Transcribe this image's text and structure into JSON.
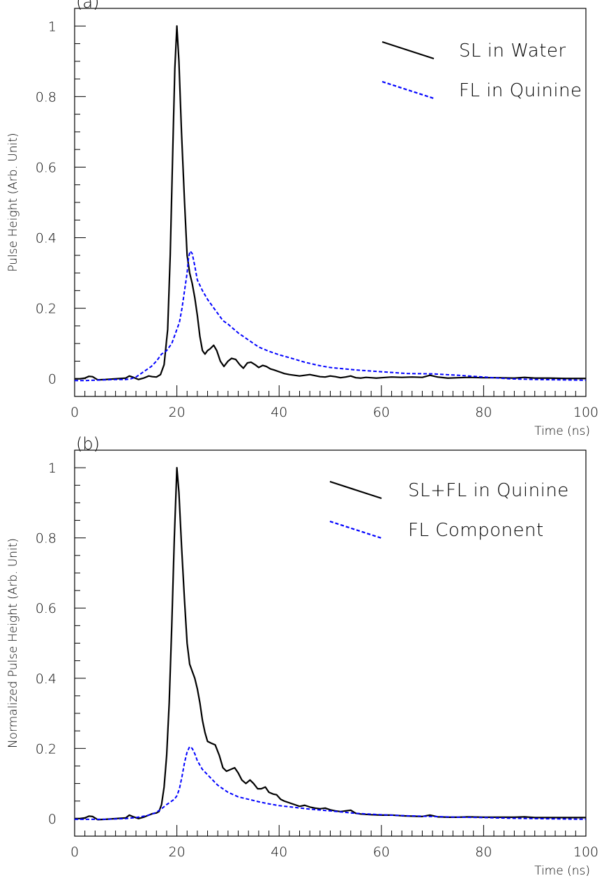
{
  "chart_data": [
    {
      "type": "line",
      "panel_label": "(a)",
      "xlabel": "Time (ns)",
      "ylabel": "Pulse Height (Arb. Unit)",
      "xlim": [
        0,
        100
      ],
      "ylim": [
        -0.05,
        1.05
      ],
      "x_ticks": [
        0,
        20,
        40,
        60,
        80,
        100
      ],
      "y_ticks": [
        0,
        0.2,
        0.4,
        0.6,
        0.8,
        1
      ],
      "x_tick_labels": [
        "0",
        "20",
        "40",
        "60",
        "80",
        "100"
      ],
      "y_tick_labels": [
        "0",
        "0.2",
        "0.4",
        "0.6",
        "0.8",
        "1"
      ],
      "grid": false,
      "legend_position": "top-right",
      "series": [
        {
          "name": "SL in Water",
          "color": "#000000",
          "style": "solid",
          "x": [
            0,
            1,
            2,
            2.8,
            3.5,
            4.5,
            6,
            8,
            10,
            10.7,
            11.5,
            12.5,
            13.5,
            14.5,
            15.2,
            16,
            16.8,
            17.5,
            18.2,
            18.7,
            19.2,
            19.6,
            20,
            20.4,
            20.9,
            21.5,
            22,
            22.5,
            23,
            23.5,
            24,
            24.5,
            25,
            25.5,
            26,
            26.5,
            27.2,
            27.8,
            28.5,
            29.2,
            30,
            30.7,
            31.5,
            32.3,
            33,
            33.8,
            34.5,
            35.3,
            36,
            36.8,
            37.5,
            38.3,
            39,
            40,
            41,
            42,
            43,
            44,
            45,
            46,
            47,
            48,
            49,
            50,
            51,
            52,
            53,
            54,
            55,
            56,
            57,
            58,
            59,
            60,
            62,
            64,
            66,
            68,
            69.5,
            71,
            73,
            75,
            77,
            80,
            83,
            86,
            88,
            90,
            93,
            96,
            100
          ],
          "y": [
            0,
            0,
            0.002,
            0.007,
            0.006,
            -0.003,
            -0.002,
            0,
            0.002,
            0.008,
            0.004,
            -0.002,
            0.002,
            0.008,
            0.006,
            0.005,
            0.012,
            0.04,
            0.14,
            0.35,
            0.65,
            0.88,
            1.0,
            0.9,
            0.7,
            0.5,
            0.35,
            0.3,
            0.27,
            0.23,
            0.18,
            0.12,
            0.08,
            0.07,
            0.08,
            0.085,
            0.095,
            0.08,
            0.05,
            0.035,
            0.05,
            0.058,
            0.055,
            0.04,
            0.03,
            0.045,
            0.047,
            0.04,
            0.032,
            0.038,
            0.035,
            0.028,
            0.025,
            0.02,
            0.015,
            0.012,
            0.01,
            0.008,
            0.01,
            0.012,
            0.009,
            0.006,
            0.005,
            0.008,
            0.006,
            0.003,
            0.005,
            0.008,
            0.003,
            0.002,
            0.004,
            0.003,
            0.002,
            0.003,
            0.005,
            0.004,
            0.005,
            0.004,
            0.01,
            0.005,
            0.002,
            0.003,
            0.004,
            0.003,
            0.003,
            0.002,
            0.004,
            0.002,
            0.002,
            0.001,
            0.001
          ]
        },
        {
          "name": "FL in Quinine",
          "color": "#0000ff",
          "style": "dashed",
          "x": [
            0,
            2,
            4,
            6,
            8,
            10,
            11,
            12,
            13,
            14,
            15,
            16,
            16.5,
            17,
            17.5,
            18,
            18.5,
            19,
            19.5,
            20,
            20.5,
            21,
            21.5,
            22,
            22.3,
            22.6,
            23,
            23.5,
            24,
            25,
            26,
            27,
            28,
            29,
            30,
            32,
            34,
            36,
            38,
            40,
            42,
            45,
            48,
            50,
            55,
            60,
            65,
            70,
            75,
            80,
            85,
            90,
            95,
            100
          ],
          "y": [
            -0.005,
            -0.005,
            -0.004,
            -0.003,
            -0.002,
            -0.002,
            0.0,
            0.005,
            0.015,
            0.025,
            0.035,
            0.05,
            0.06,
            0.07,
            0.075,
            0.08,
            0.09,
            0.1,
            0.12,
            0.14,
            0.16,
            0.2,
            0.25,
            0.3,
            0.345,
            0.362,
            0.355,
            0.32,
            0.28,
            0.25,
            0.225,
            0.205,
            0.185,
            0.165,
            0.155,
            0.13,
            0.11,
            0.09,
            0.078,
            0.068,
            0.06,
            0.047,
            0.037,
            0.032,
            0.025,
            0.02,
            0.015,
            0.014,
            0.01,
            0.005,
            0.0,
            -0.002,
            -0.003,
            -0.004
          ]
        }
      ]
    },
    {
      "type": "line",
      "panel_label": "(b)",
      "xlabel": "Time (ns)",
      "ylabel": "Normalized Pulse Height (Arb. Unit)",
      "xlim": [
        0,
        100
      ],
      "ylim": [
        -0.05,
        1.05
      ],
      "x_ticks": [
        0,
        20,
        40,
        60,
        80,
        100
      ],
      "y_ticks": [
        0,
        0.2,
        0.4,
        0.6,
        0.8,
        1
      ],
      "x_tick_labels": [
        "0",
        "20",
        "40",
        "60",
        "80",
        "100"
      ],
      "y_tick_labels": [
        "0",
        "0.2",
        "0.4",
        "0.6",
        "0.8",
        "1"
      ],
      "grid": false,
      "legend_position": "top-right",
      "series": [
        {
          "name": "SL+FL in Quinine",
          "color": "#000000",
          "style": "solid",
          "x": [
            0,
            1,
            2,
            2.8,
            3.5,
            4.5,
            6,
            8,
            10,
            10.7,
            11.5,
            12.5,
            13.5,
            14.5,
            15.2,
            16,
            16.5,
            17,
            17.5,
            18,
            18.5,
            19,
            19.5,
            20,
            20.4,
            20.9,
            21.5,
            22,
            22.5,
            23,
            23.5,
            24,
            24.5,
            25,
            25.5,
            26,
            26.7,
            27.5,
            28.3,
            29,
            29.7,
            30.5,
            31.3,
            32,
            32.7,
            33.5,
            34.3,
            35,
            35.8,
            36.5,
            37.3,
            38,
            38.8,
            39.5,
            40.3,
            41,
            42,
            43,
            44,
            45,
            46,
            47,
            48,
            49,
            50,
            51,
            52,
            53,
            54,
            55,
            56,
            57,
            58,
            60,
            62,
            64,
            66,
            68,
            69.5,
            71,
            73,
            75,
            77,
            80,
            83,
            86,
            88,
            90,
            93,
            96,
            100
          ],
          "y": [
            0,
            0,
            0.002,
            0.007,
            0.006,
            -0.003,
            -0.002,
            0,
            0.002,
            0.01,
            0.005,
            0,
            0.004,
            0.01,
            0.014,
            0.016,
            0.02,
            0.04,
            0.09,
            0.18,
            0.33,
            0.55,
            0.8,
            1.0,
            0.93,
            0.78,
            0.62,
            0.5,
            0.44,
            0.42,
            0.4,
            0.37,
            0.33,
            0.28,
            0.245,
            0.22,
            0.215,
            0.21,
            0.18,
            0.145,
            0.135,
            0.14,
            0.145,
            0.13,
            0.11,
            0.1,
            0.11,
            0.1,
            0.085,
            0.085,
            0.09,
            0.075,
            0.07,
            0.068,
            0.055,
            0.05,
            0.045,
            0.04,
            0.035,
            0.038,
            0.033,
            0.03,
            0.028,
            0.03,
            0.025,
            0.022,
            0.02,
            0.022,
            0.024,
            0.015,
            0.013,
            0.012,
            0.011,
            0.01,
            0.01,
            0.008,
            0.007,
            0.006,
            0.01,
            0.005,
            0.004,
            0.004,
            0.005,
            0.004,
            0.004,
            0.004,
            0.005,
            0.003,
            0.003,
            0.003,
            0.003
          ]
        },
        {
          "name": "FL Component",
          "color": "#0000ff",
          "style": "dashed",
          "x": [
            0,
            2,
            4,
            6,
            8,
            10,
            12,
            14,
            15,
            16,
            17,
            18,
            19,
            19.5,
            20,
            20.5,
            21,
            21.5,
            22,
            22.5,
            23,
            23.5,
            24,
            25,
            26,
            27,
            28,
            29,
            30,
            32,
            34,
            36,
            38,
            40,
            43,
            46,
            50,
            55,
            60,
            65,
            70,
            75,
            80,
            85,
            90,
            95,
            100
          ],
          "y": [
            -0.002,
            -0.002,
            -0.002,
            -0.002,
            -0.001,
            0.0,
            0.003,
            0.008,
            0.012,
            0.018,
            0.028,
            0.04,
            0.05,
            0.055,
            0.065,
            0.085,
            0.12,
            0.16,
            0.19,
            0.205,
            0.2,
            0.185,
            0.165,
            0.14,
            0.125,
            0.11,
            0.095,
            0.085,
            0.075,
            0.062,
            0.055,
            0.048,
            0.042,
            0.037,
            0.032,
            0.027,
            0.022,
            0.015,
            0.011,
            0.008,
            0.006,
            0.004,
            0.003,
            0.001,
            0.0,
            -0.001,
            -0.002
          ]
        }
      ]
    }
  ]
}
